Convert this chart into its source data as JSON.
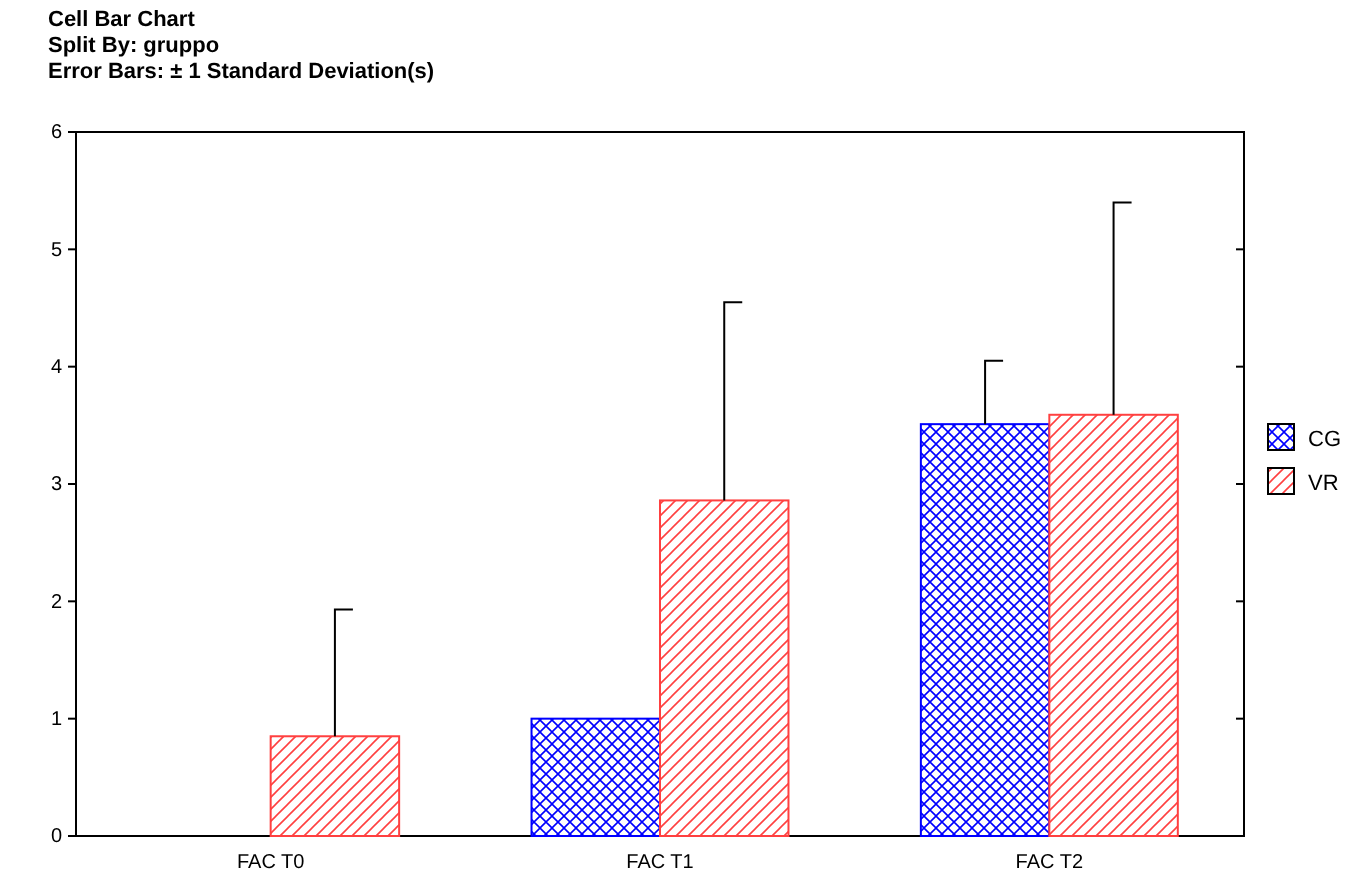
{
  "chart_data": {
    "type": "bar",
    "title": "Cell Bar Chart",
    "subtitle": "Split By: gruppo\nError Bars: ± 1 Standard Deviation(s)",
    "categories": [
      "FAC T0",
      "FAC T1",
      "FAC T2"
    ],
    "series": [
      {
        "name": "CG",
        "color": "#0000ff",
        "values": [
          0,
          1.0,
          3.51
        ],
        "errors": [
          null,
          null,
          [
            3.51,
            4.05
          ]
        ]
      },
      {
        "name": "VR",
        "color": "#ff4040",
        "values": [
          0.85,
          2.86,
          3.59
        ],
        "errors": [
          [
            0.85,
            1.93
          ],
          [
            2.86,
            4.55
          ],
          [
            3.59,
            5.4
          ]
        ]
      }
    ],
    "ylim": [
      0,
      6
    ],
    "yticks": [
      0,
      1,
      2,
      3,
      4,
      5,
      6
    ],
    "legend": "right"
  }
}
